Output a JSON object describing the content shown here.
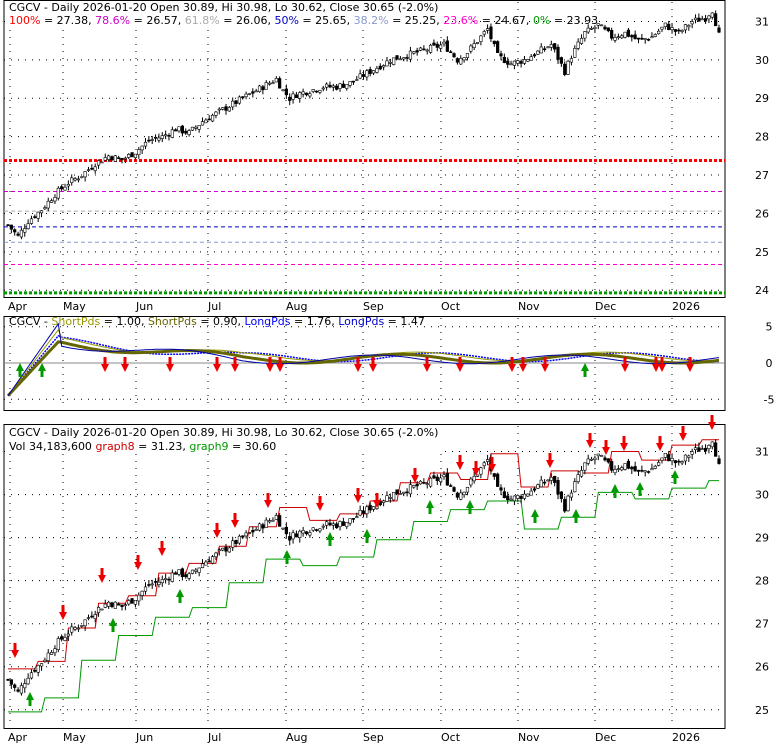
{
  "ticker": "CGCV",
  "months": [
    "Apr",
    "May",
    "Jun",
    "Jul",
    "Aug",
    "Sep",
    "Oct",
    "Nov",
    "Dec",
    "2026"
  ],
  "panel1": {
    "header_title": "CGCV - Daily 2026-01-20 Open 30.89, Hi 30.98, Lo 30.62, Close 30.65 (-2.0%)",
    "fib_levels": [
      {
        "label": "100%",
        "value_text": "27.38",
        "value": 27.38,
        "color": "#ff0000"
      },
      {
        "label": "78.6%",
        "value_text": "26.57",
        "value": 26.57,
        "color": "#cc00cc"
      },
      {
        "label": "61.8%",
        "value_text": "26.06",
        "value": 26.06,
        "color": "#aaaaaa"
      },
      {
        "label": "50%",
        "value_text": "25.65",
        "value": 25.65,
        "color": "#0000cc"
      },
      {
        "label": "38.2%",
        "value_text": "25.25",
        "value": 25.25,
        "color": "#8899cc"
      },
      {
        "label": "23.6%",
        "value_text": "24.67",
        "value": 24.67,
        "color": "#ff00cc"
      },
      {
        "label": "0%",
        "value_text": "23.93",
        "value": 23.93,
        "color": "#009900"
      }
    ],
    "y_ticks": [
      "31",
      "30",
      "29",
      "28",
      "27",
      "26",
      "25",
      "24"
    ]
  },
  "panel2": {
    "header": [
      {
        "text": "CGCV - ",
        "color": "#000000"
      },
      {
        "text": "ShortPds",
        "color": "#999900"
      },
      {
        "text": " = 1.00, ",
        "color": "#000000"
      },
      {
        "text": "ShortPds",
        "color": "#666600"
      },
      {
        "text": " = 0.90, ",
        "color": "#000000"
      },
      {
        "text": "LongPds",
        "color": "#0000ff"
      },
      {
        "text": " = 1.76, ",
        "color": "#000000"
      },
      {
        "text": "LongPds",
        "color": "#0000cc"
      },
      {
        "text": " = 1.47",
        "color": "#000000"
      }
    ],
    "y_ticks": [
      "5",
      "0",
      "-5"
    ]
  },
  "panel3": {
    "header_title": "CGCV - Daily 2026-01-20 Open 30.89, Hi 30.98, Lo 30.62, Close 30.65 (-2.0%)",
    "vol_label": "Vol 34,183,600",
    "graph8_label": "graph8",
    "graph8_value": " = 31.23",
    "graph9_label": "graph9",
    "graph9_value": " = 30.60",
    "y_ticks": [
      "31",
      "30",
      "29",
      "28",
      "27",
      "26",
      "25"
    ]
  },
  "chart_data": {
    "type": "candlestick",
    "series": [
      {
        "name": "CGCV",
        "close_points": [
          [
            0,
            25.7
          ],
          [
            3,
            25.4
          ],
          [
            6,
            25.8
          ],
          [
            10,
            26.1
          ],
          [
            14,
            26.5
          ],
          [
            18,
            26.8
          ],
          [
            22,
            27.0
          ],
          [
            26,
            27.3
          ],
          [
            30,
            27.5
          ],
          [
            34,
            27.4
          ],
          [
            38,
            27.6
          ],
          [
            42,
            27.9
          ],
          [
            46,
            28.0
          ],
          [
            50,
            28.2
          ],
          [
            54,
            28.1
          ],
          [
            58,
            28.4
          ],
          [
            62,
            28.6
          ],
          [
            66,
            28.8
          ],
          [
            70,
            29.0
          ],
          [
            74,
            29.2
          ],
          [
            78,
            29.4
          ],
          [
            80,
            29.5
          ],
          [
            82,
            29.2
          ],
          [
            84,
            29.0
          ],
          [
            86,
            29.1
          ],
          [
            90,
            29.2
          ],
          [
            94,
            29.3
          ],
          [
            98,
            29.3
          ],
          [
            102,
            29.4
          ],
          [
            106,
            29.6
          ],
          [
            110,
            29.8
          ],
          [
            114,
            30.0
          ],
          [
            118,
            30.1
          ],
          [
            122,
            30.2
          ],
          [
            126,
            30.3
          ],
          [
            130,
            30.4
          ],
          [
            134,
            30.0
          ],
          [
            137,
            30.2
          ],
          [
            140,
            30.5
          ],
          [
            143,
            30.8
          ],
          [
            146,
            30.1
          ],
          [
            150,
            29.9
          ],
          [
            154,
            30.0
          ],
          [
            158,
            30.2
          ],
          [
            162,
            30.4
          ],
          [
            166,
            29.7
          ],
          [
            168,
            30.1
          ],
          [
            170,
            30.4
          ],
          [
            172,
            30.7
          ],
          [
            176,
            30.9
          ],
          [
            180,
            30.6
          ],
          [
            184,
            30.7
          ],
          [
            188,
            30.5
          ],
          [
            192,
            30.6
          ],
          [
            196,
            30.9
          ],
          [
            200,
            30.7
          ],
          [
            204,
            31.0
          ],
          [
            208,
            31.1
          ],
          [
            210,
            31.3
          ],
          [
            212,
            30.65
          ]
        ]
      }
    ],
    "panel2_series": [
      {
        "name": "ShortPds",
        "value": 1.0
      },
      {
        "name": "ShortPds",
        "value": 0.9
      },
      {
        "name": "LongPds",
        "value": 1.76
      },
      {
        "name": "LongPds",
        "value": 1.47
      }
    ],
    "panel3_series": [
      {
        "name": "graph8",
        "value": 31.23
      },
      {
        "name": "graph9",
        "value": 30.6
      }
    ]
  }
}
